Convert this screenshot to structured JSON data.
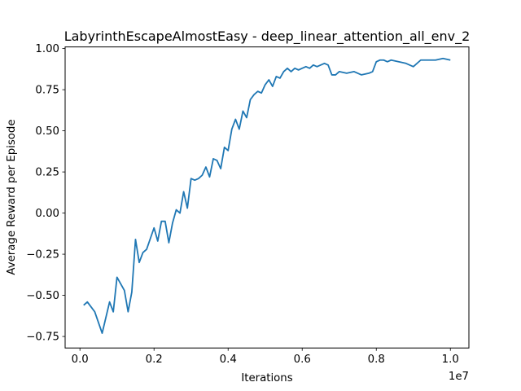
{
  "chart_data": {
    "type": "line",
    "title": "LabyrinthEscapeAlmostEasy - deep_linear_attention_all_env_2",
    "xlabel": "Iterations",
    "ylabel": "Average Reward per Episode",
    "x_offset_label": "1e7",
    "xlim": [
      -0.04,
      1.05
    ],
    "ylim": [
      -0.82,
      1.01
    ],
    "x_ticks": [
      0.0,
      0.2,
      0.4,
      0.6,
      0.8,
      1.0
    ],
    "x_tick_labels": [
      "0.0",
      "0.2",
      "0.4",
      "0.6",
      "0.8",
      "1.0"
    ],
    "y_ticks": [
      -0.75,
      -0.5,
      -0.25,
      0.0,
      0.25,
      0.5,
      0.75,
      1.0
    ],
    "y_tick_labels": [
      "−0.75",
      "−0.50",
      "−0.25",
      "0.00",
      "0.25",
      "0.50",
      "0.75",
      "1.00"
    ],
    "grid": false,
    "line_color": "#1f77b4",
    "series": [
      {
        "x": [
          0.01,
          0.02,
          0.04,
          0.06,
          0.08,
          0.09,
          0.1,
          0.12,
          0.13,
          0.14,
          0.15,
          0.16,
          0.17,
          0.18,
          0.2,
          0.21,
          0.22,
          0.23,
          0.24,
          0.25,
          0.26,
          0.27,
          0.28,
          0.29,
          0.3,
          0.31,
          0.32,
          0.33,
          0.34,
          0.35,
          0.36,
          0.37,
          0.38,
          0.39,
          0.4,
          0.41,
          0.42,
          0.43,
          0.44,
          0.45,
          0.46,
          0.47,
          0.48,
          0.49,
          0.5,
          0.51,
          0.52,
          0.53,
          0.54,
          0.55,
          0.56,
          0.57,
          0.58,
          0.59,
          0.6,
          0.61,
          0.62,
          0.63,
          0.64,
          0.65,
          0.66,
          0.67,
          0.68,
          0.69,
          0.7,
          0.72,
          0.74,
          0.76,
          0.78,
          0.79,
          0.8,
          0.81,
          0.82,
          0.83,
          0.84,
          0.86,
          0.88,
          0.9,
          0.92,
          0.94,
          0.96,
          0.98,
          1.0
        ],
        "y": [
          -0.56,
          -0.54,
          -0.6,
          -0.73,
          -0.54,
          -0.6,
          -0.39,
          -0.47,
          -0.6,
          -0.48,
          -0.16,
          -0.3,
          -0.24,
          -0.22,
          -0.09,
          -0.17,
          -0.05,
          -0.05,
          -0.18,
          -0.06,
          0.02,
          0.0,
          0.13,
          0.03,
          0.21,
          0.2,
          0.21,
          0.23,
          0.28,
          0.22,
          0.33,
          0.32,
          0.27,
          0.4,
          0.38,
          0.51,
          0.57,
          0.51,
          0.62,
          0.58,
          0.69,
          0.72,
          0.74,
          0.73,
          0.78,
          0.81,
          0.77,
          0.83,
          0.82,
          0.86,
          0.88,
          0.86,
          0.88,
          0.87,
          0.88,
          0.89,
          0.88,
          0.9,
          0.89,
          0.9,
          0.91,
          0.9,
          0.84,
          0.84,
          0.86,
          0.85,
          0.86,
          0.84,
          0.85,
          0.86,
          0.92,
          0.93,
          0.93,
          0.92,
          0.93,
          0.92,
          0.91,
          0.89,
          0.93,
          0.93,
          0.93,
          0.94,
          0.93
        ]
      }
    ]
  }
}
